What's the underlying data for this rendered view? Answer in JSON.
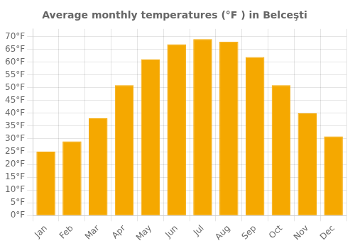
{
  "chart_data": {
    "type": "bar",
    "title": "Average monthly temperatures (°F ) in Belceşti",
    "categories": [
      "Jan",
      "Feb",
      "Mar",
      "Apr",
      "May",
      "Jun",
      "Jul",
      "Aug",
      "Sep",
      "Oct",
      "Nov",
      "Dec"
    ],
    "values": [
      25,
      29,
      38,
      51,
      61,
      67,
      69,
      68,
      62,
      51,
      40,
      31
    ],
    "color": "#F5A800",
    "ylim": [
      0,
      73
    ],
    "yticks": [
      {
        "value": 0,
        "label": "0°F"
      },
      {
        "value": 5,
        "label": "5°F"
      },
      {
        "value": 10,
        "label": "10°F"
      },
      {
        "value": 15,
        "label": "15°F"
      },
      {
        "value": 20,
        "label": "20°F"
      },
      {
        "value": 25,
        "label": "25°F"
      },
      {
        "value": 30,
        "label": "30°F"
      },
      {
        "value": 35,
        "label": "35°F"
      },
      {
        "value": 40,
        "label": "40°F"
      },
      {
        "value": 45,
        "label": "45°F"
      },
      {
        "value": 50,
        "label": "50°F"
      },
      {
        "value": 55,
        "label": "55°F"
      },
      {
        "value": 60,
        "label": "60°F"
      },
      {
        "value": 65,
        "label": "65°F"
      },
      {
        "value": 70,
        "label": "70°F"
      }
    ],
    "grid": true
  }
}
